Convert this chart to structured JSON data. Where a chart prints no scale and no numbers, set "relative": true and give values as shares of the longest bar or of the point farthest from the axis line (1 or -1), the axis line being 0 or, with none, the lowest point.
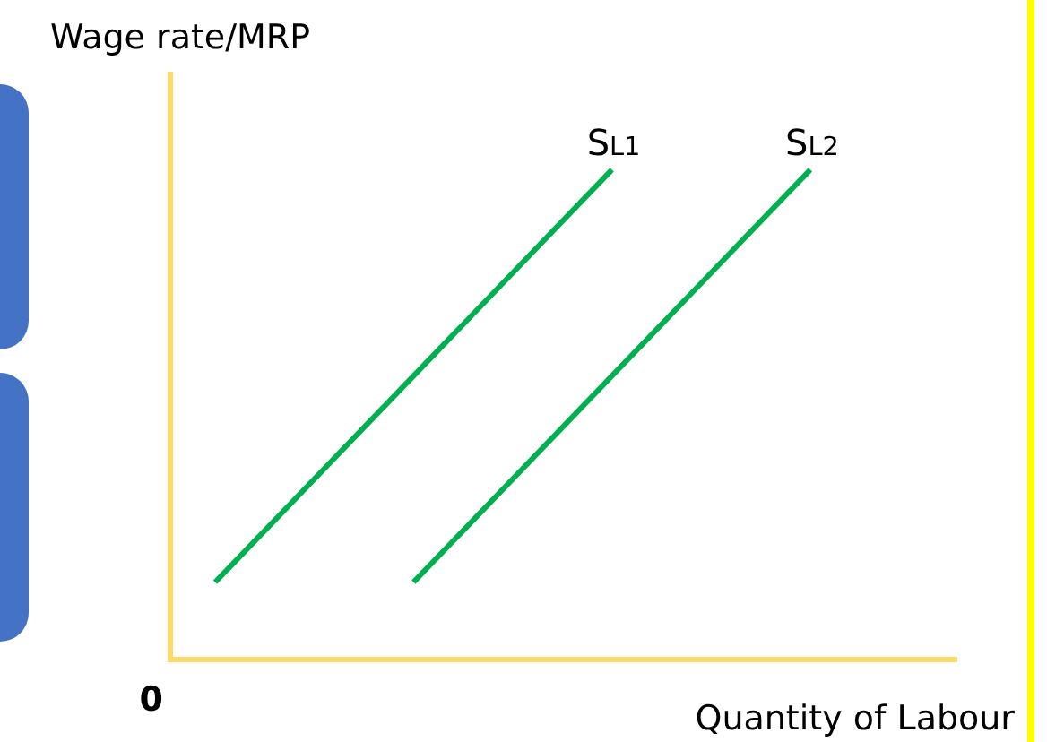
{
  "chart_data": {
    "type": "line",
    "relative": true,
    "ylabel": "Wage rate/MRP",
    "xlabel": "Quantity of Labour",
    "legend": false,
    "grid": false,
    "marker": "none",
    "annotations": [
      "0"
    ],
    "categories": [
      null,
      null,
      null,
      null
    ],
    "series": [
      {
        "name": "S$_{L1}$",
        "color": "#00b050",
        "values": [
          0.158,
          null,
          1,
          null
        ]
      },
      {
        "name": "S$_{L2}$",
        "color": "#00b050",
        "values": [
          null,
          0.158,
          null,
          1
        ]
      }
    ]
  }
}
